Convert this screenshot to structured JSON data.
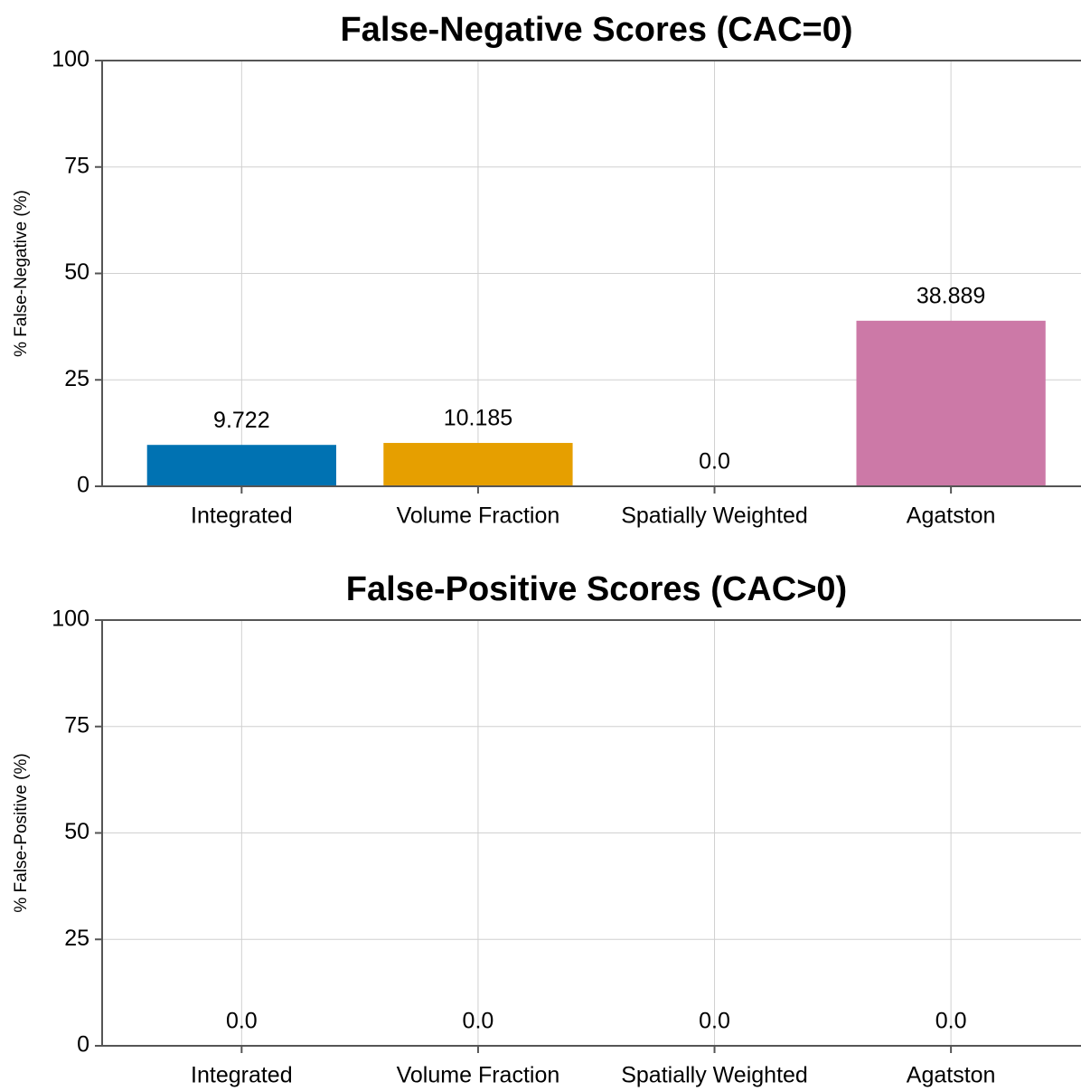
{
  "chart_data": [
    {
      "type": "bar",
      "title": "False-Negative Scores (CAC=0)",
      "ylabel": "% False-Negative (%)",
      "categories": [
        "Integrated",
        "Volume Fraction",
        "Spatially Weighted",
        "Agatston"
      ],
      "values": [
        9.722,
        10.185,
        0,
        38.889
      ],
      "value_labels": [
        "9.722",
        "10.185",
        "0.0",
        "38.889"
      ],
      "colors": [
        "#0072b2",
        "#e69f00",
        "#009e73",
        "#cc79a7"
      ],
      "ylim": [
        0,
        100
      ],
      "yticks": [
        0,
        25,
        50,
        75,
        100
      ],
      "grid": true
    },
    {
      "type": "bar",
      "title": "False-Positive Scores (CAC>0)",
      "ylabel": "% False-Positive (%)",
      "categories": [
        "Integrated",
        "Volume Fraction",
        "Spatially Weighted",
        "Agatston"
      ],
      "values": [
        0,
        0,
        0,
        0
      ],
      "value_labels": [
        "0.0",
        "0.0",
        "0.0",
        "0.0"
      ],
      "colors": [
        "#0072b2",
        "#e69f00",
        "#009e73",
        "#cc79a7"
      ],
      "ylim": [
        0,
        100
      ],
      "yticks": [
        0,
        25,
        50,
        75,
        100
      ],
      "grid": true
    }
  ]
}
